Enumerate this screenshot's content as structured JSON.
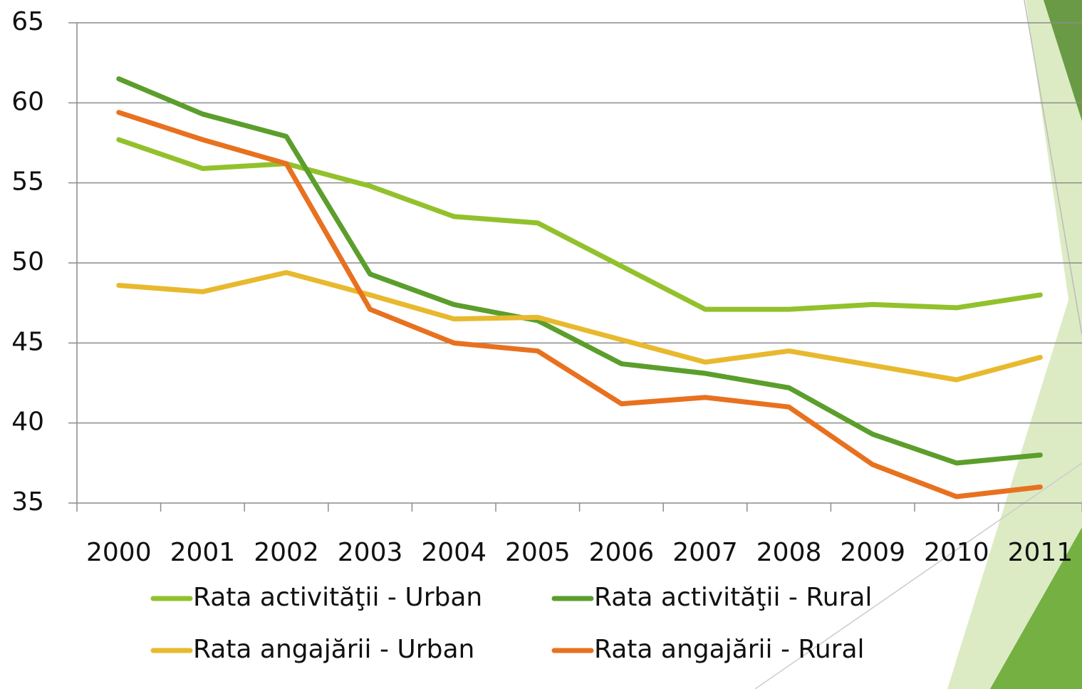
{
  "chart_data": {
    "type": "line",
    "categories": [
      "2000",
      "2001",
      "2002",
      "2003",
      "2004",
      "2005",
      "2006",
      "2007",
      "2008",
      "2009",
      "2010",
      "2011"
    ],
    "series": [
      {
        "name": "Rata activităţii - Urban",
        "color": "#92c12c",
        "values": [
          57.7,
          55.9,
          56.2,
          54.8,
          52.9,
          52.5,
          49.8,
          47.1,
          47.1,
          47.4,
          47.2,
          48.0
        ]
      },
      {
        "name": "Rata activităţii - Rural",
        "color": "#5b9e2c",
        "values": [
          61.5,
          59.3,
          57.9,
          49.3,
          47.4,
          46.4,
          43.7,
          43.1,
          42.2,
          39.3,
          37.5,
          38.0
        ]
      },
      {
        "name": "Rata angajării - Urban",
        "color": "#e8b92e",
        "values": [
          48.6,
          48.2,
          49.4,
          48.0,
          46.5,
          46.6,
          45.2,
          43.8,
          44.5,
          43.6,
          42.7,
          44.1
        ]
      },
      {
        "name": "Rata angajării - Rural",
        "color": "#e8711f",
        "values": [
          59.4,
          57.7,
          56.2,
          47.1,
          45.0,
          44.5,
          41.2,
          41.6,
          41.0,
          37.4,
          35.4,
          36.0
        ]
      }
    ],
    "ylim": [
      35,
      65
    ],
    "yticks": [
      35,
      40,
      45,
      50,
      55,
      60,
      65
    ],
    "grid": true
  }
}
